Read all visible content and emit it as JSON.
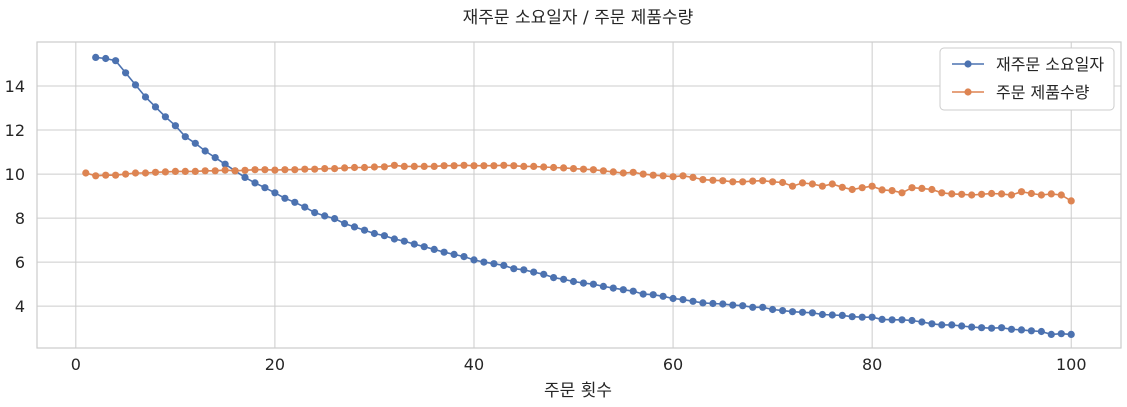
{
  "chart_data": {
    "type": "line",
    "title": "재주문 소요일자 / 주문 제품수량",
    "xlabel": "주문 횟수",
    "ylabel": "",
    "xlim": [
      -3.9,
      105
    ],
    "ylim": [
      2.1,
      16.0
    ],
    "xticks": [
      0,
      20,
      40,
      60,
      80,
      100
    ],
    "yticks": [
      4,
      6,
      8,
      10,
      12,
      14
    ],
    "grid": true,
    "legend_position": "top-right",
    "series": [
      {
        "name": "재주문 소요일자",
        "color": "#4c72b0",
        "x": [
          2,
          3,
          4,
          5,
          6,
          7,
          8,
          9,
          10,
          11,
          12,
          13,
          14,
          15,
          16,
          17,
          18,
          19,
          20,
          21,
          22,
          23,
          24,
          25,
          26,
          27,
          28,
          29,
          30,
          31,
          32,
          33,
          34,
          35,
          36,
          37,
          38,
          39,
          40,
          41,
          42,
          43,
          44,
          45,
          46,
          47,
          48,
          49,
          50,
          51,
          52,
          53,
          54,
          55,
          56,
          57,
          58,
          59,
          60,
          61,
          62,
          63,
          64,
          65,
          66,
          67,
          68,
          69,
          70,
          71,
          72,
          73,
          74,
          75,
          76,
          77,
          78,
          79,
          80,
          81,
          82,
          83,
          84,
          85,
          86,
          87,
          88,
          89,
          90,
          91,
          92,
          93,
          94,
          95,
          96,
          97,
          98,
          99,
          100
        ],
        "values": [
          15.3,
          15.25,
          15.15,
          14.6,
          14.05,
          13.5,
          13.05,
          12.6,
          12.2,
          11.7,
          11.4,
          11.05,
          10.75,
          10.45,
          10.15,
          9.85,
          9.6,
          9.38,
          9.15,
          8.9,
          8.72,
          8.5,
          8.25,
          8.1,
          7.98,
          7.75,
          7.6,
          7.45,
          7.3,
          7.2,
          7.05,
          6.95,
          6.82,
          6.7,
          6.58,
          6.45,
          6.35,
          6.25,
          6.1,
          6.0,
          5.93,
          5.85,
          5.7,
          5.65,
          5.55,
          5.45,
          5.3,
          5.22,
          5.12,
          5.05,
          5.0,
          4.9,
          4.82,
          4.75,
          4.68,
          4.55,
          4.52,
          4.45,
          4.35,
          4.3,
          4.22,
          4.15,
          4.12,
          4.1,
          4.05,
          4.02,
          3.95,
          3.95,
          3.85,
          3.8,
          3.75,
          3.72,
          3.7,
          3.62,
          3.6,
          3.58,
          3.52,
          3.5,
          3.5,
          3.4,
          3.38,
          3.38,
          3.35,
          3.28,
          3.2,
          3.15,
          3.15,
          3.1,
          3.05,
          3.02,
          3.0,
          3.02,
          2.95,
          2.92,
          2.88,
          2.85,
          2.72,
          2.75,
          2.72
        ]
      },
      {
        "name": "주문 제품수량",
        "color": "#dd8452",
        "x": [
          1,
          2,
          3,
          4,
          5,
          6,
          7,
          8,
          9,
          10,
          11,
          12,
          13,
          14,
          15,
          16,
          17,
          18,
          19,
          20,
          21,
          22,
          23,
          24,
          25,
          26,
          27,
          28,
          29,
          30,
          31,
          32,
          33,
          34,
          35,
          36,
          37,
          38,
          39,
          40,
          41,
          42,
          43,
          44,
          45,
          46,
          47,
          48,
          49,
          50,
          51,
          52,
          53,
          54,
          55,
          56,
          57,
          58,
          59,
          60,
          61,
          62,
          63,
          64,
          65,
          66,
          67,
          68,
          69,
          70,
          71,
          72,
          73,
          74,
          75,
          76,
          77,
          78,
          79,
          80,
          81,
          82,
          83,
          84,
          85,
          86,
          87,
          88,
          89,
          90,
          91,
          92,
          93,
          94,
          95,
          96,
          97,
          98,
          99,
          100
        ],
        "values": [
          10.05,
          9.92,
          9.95,
          9.95,
          10.0,
          10.05,
          10.05,
          10.08,
          10.1,
          10.12,
          10.12,
          10.12,
          10.15,
          10.15,
          10.18,
          10.15,
          10.17,
          10.2,
          10.2,
          10.18,
          10.2,
          10.2,
          10.22,
          10.22,
          10.25,
          10.25,
          10.28,
          10.3,
          10.3,
          10.32,
          10.33,
          10.4,
          10.35,
          10.35,
          10.35,
          10.35,
          10.38,
          10.38,
          10.4,
          10.38,
          10.38,
          10.38,
          10.4,
          10.38,
          10.35,
          10.35,
          10.32,
          10.3,
          10.28,
          10.25,
          10.22,
          10.2,
          10.15,
          10.1,
          10.05,
          10.08,
          10.0,
          9.95,
          9.92,
          9.88,
          9.92,
          9.85,
          9.75,
          9.72,
          9.7,
          9.65,
          9.65,
          9.68,
          9.7,
          9.65,
          9.62,
          9.45,
          9.6,
          9.55,
          9.45,
          9.55,
          9.4,
          9.3,
          9.38,
          9.45,
          9.28,
          9.25,
          9.15,
          9.38,
          9.35,
          9.3,
          9.15,
          9.1,
          9.08,
          9.05,
          9.08,
          9.12,
          9.1,
          9.05,
          9.2,
          9.12,
          9.05,
          9.1,
          9.05,
          8.78
        ]
      }
    ]
  }
}
